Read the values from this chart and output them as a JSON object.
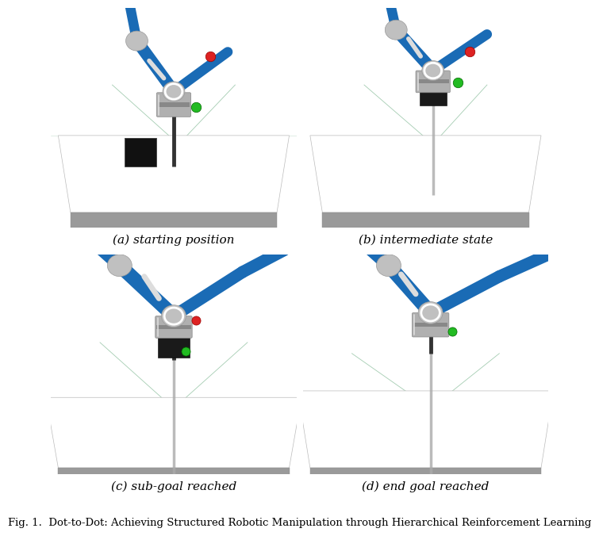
{
  "captions": [
    "(a) starting position",
    "(b) intermediate state",
    "(c) sub-goal reached",
    "(d) end goal reached"
  ],
  "figure_caption": "Fig. 1.  Dot-to-Dot: Achieving Structured Robotic Manipulation through Hierarchical Reinforcement Learning",
  "bg_color": "#ffffff",
  "scene_bg": "#5cb87a",
  "caption_fontsize": 11,
  "fig_caption_fontsize": 9.5,
  "grid": [
    2,
    2
  ],
  "img_border_color": "#cccccc",
  "table_color": "#f0f0f0",
  "table_side_color": "#888888",
  "blue_arm": "#1a6bb5",
  "gripper_color": "#888888",
  "white_joint": "#cccccc",
  "black_cube": "#222222",
  "red_dot": "#dd2222",
  "green_dot": "#22bb22",
  "peg_color": "#aaaaaa"
}
